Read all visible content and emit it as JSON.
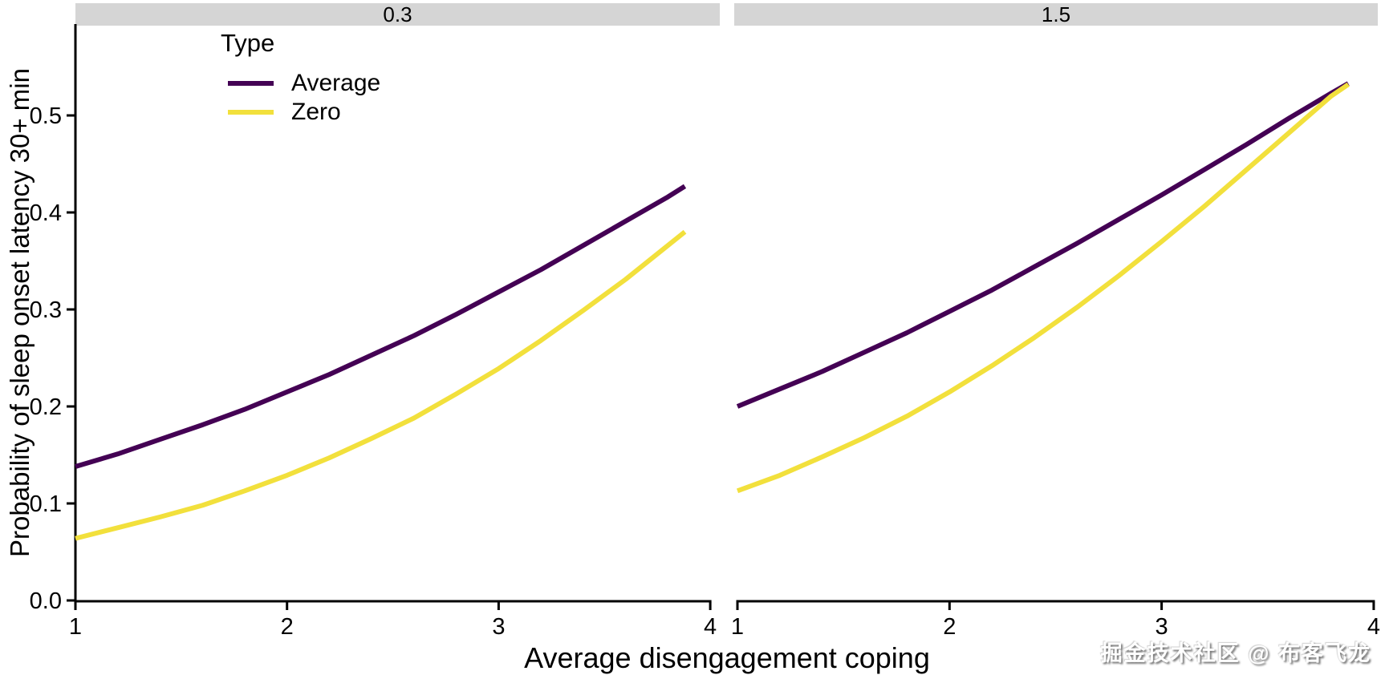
{
  "figure": {
    "background": "#ffffff",
    "watermark": "掘金技术社区 @ 布客飞龙"
  },
  "chart_data": {
    "type": "line",
    "title": "",
    "xlabel": "Average disengagement coping",
    "ylabel": "Probability of sleep onset latency 30+ min",
    "x_ticks": [
      "1",
      "2",
      "3",
      "4"
    ],
    "y_ticks": [
      "0.0",
      "0.1",
      "0.2",
      "0.3",
      "0.4",
      "0.5"
    ],
    "xlim": [
      1,
      4
    ],
    "ylim": [
      0,
      0.596
    ],
    "grid": "off",
    "axis_color": "#000000",
    "strip_background": "#d5d5d5",
    "x": [
      1.0,
      1.2,
      1.4,
      1.6,
      1.8,
      2.0,
      2.2,
      2.4,
      2.6,
      2.8,
      3.0,
      3.2,
      3.4,
      3.6,
      3.8,
      3.88
    ],
    "panels": [
      {
        "facet_label": "0.3",
        "series": [
          {
            "name": "Average",
            "color": "#440154",
            "values": [
              0.138,
              0.151,
              0.166,
              0.181,
              0.197,
              0.215,
              0.233,
              0.253,
              0.273,
              0.295,
              0.318,
              0.341,
              0.366,
              0.391,
              0.416,
              0.427
            ]
          },
          {
            "name": "Zero",
            "color": "#F2E03C",
            "values": [
              0.064,
              0.075,
              0.086,
              0.098,
              0.113,
              0.129,
              0.147,
              0.167,
              0.188,
              0.213,
              0.239,
              0.268,
              0.299,
              0.331,
              0.366,
              0.38
            ]
          }
        ]
      },
      {
        "facet_label": "1.5",
        "series": [
          {
            "name": "Average",
            "color": "#440154",
            "values": [
              0.2,
              0.218,
              0.236,
              0.256,
              0.276,
              0.298,
              0.32,
              0.344,
              0.368,
              0.393,
              0.418,
              0.444,
              0.47,
              0.497,
              0.523,
              0.533
            ]
          },
          {
            "name": "Zero",
            "color": "#F2E03C",
            "values": [
              0.113,
              0.129,
              0.148,
              0.168,
              0.19,
              0.215,
              0.242,
              0.271,
              0.302,
              0.335,
              0.37,
              0.406,
              0.444,
              0.482,
              0.52,
              0.532
            ]
          }
        ]
      }
    ],
    "legend": {
      "title": "Type",
      "position": "top-left-inside",
      "entries": [
        {
          "label": "Average",
          "color": "#440154"
        },
        {
          "label": "Zero",
          "color": "#F2E03C"
        }
      ]
    }
  }
}
